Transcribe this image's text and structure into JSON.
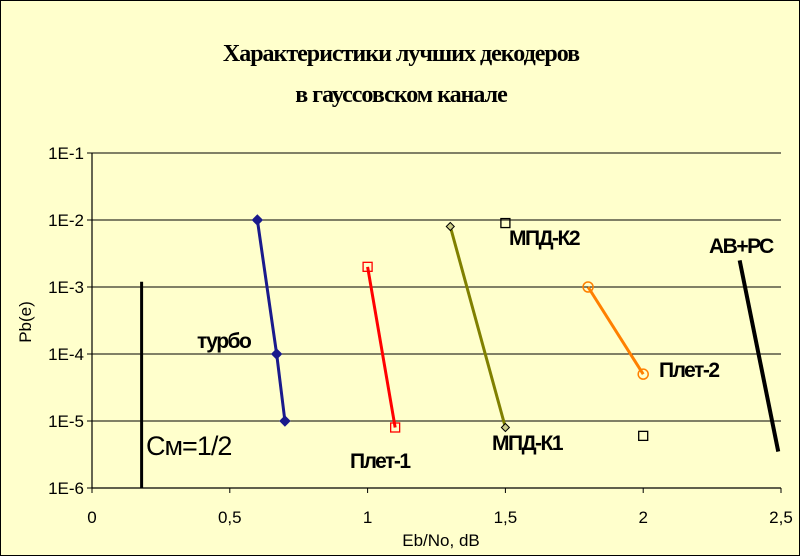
{
  "chart_data": {
    "type": "line",
    "title_lines": [
      "Характеристики  лучших  декодеров",
      "в  гауссовском  канале"
    ],
    "xlabel": "Eb/No, dB",
    "ylabel": "Pb(e)",
    "xlim": [
      0,
      2.5
    ],
    "ylim_log10": [
      -6,
      -1
    ],
    "y_scale": "log",
    "grid": "horizontal",
    "x_ticks": [
      "0",
      "0,5",
      "1",
      "1,5",
      "2",
      "2,5"
    ],
    "y_ticks": [
      "1E-6",
      "1E-5",
      "1E-4",
      "1E-3",
      "1E-2",
      "1E-1"
    ],
    "code_rate_label": "Cм=1/2",
    "series": [
      {
        "name": "турбо",
        "color": "#1a1a8c",
        "marker": "diamond",
        "points": [
          [
            0.6,
            0.01
          ],
          [
            0.67,
            0.0001
          ],
          [
            0.7,
            1e-05
          ]
        ]
      },
      {
        "name": "Плет-1",
        "color": "#ff0000",
        "marker": "square-open",
        "points": [
          [
            1.0,
            0.002
          ],
          [
            1.1,
            8e-06
          ]
        ]
      },
      {
        "name": "МПД-К1",
        "color": "#808000",
        "marker": "diamond-small",
        "points": [
          [
            1.3,
            0.008
          ],
          [
            1.5,
            8e-06
          ]
        ]
      },
      {
        "name": "МПД-К2",
        "color": "#000000",
        "marker": "square-open",
        "points": [
          [
            1.5,
            0.009
          ]
        ]
      },
      {
        "name": "Плет-2",
        "color": "#ff8000",
        "marker": "circle-open",
        "points": [
          [
            1.8,
            0.001
          ],
          [
            2.0,
            5e-05
          ]
        ]
      },
      {
        "name": "",
        "color": "#000000",
        "marker": "square-open",
        "points": [
          [
            2.0,
            6e-06
          ]
        ]
      },
      {
        "name": "АВ+РС",
        "color": "#000000",
        "marker": "none",
        "points": [
          [
            2.35,
            0.0025
          ],
          [
            2.49,
            3.5e-06
          ]
        ]
      }
    ],
    "reference_line": {
      "x": 0.18,
      "y_from": 0.0012,
      "y_to": 1e-06
    }
  }
}
